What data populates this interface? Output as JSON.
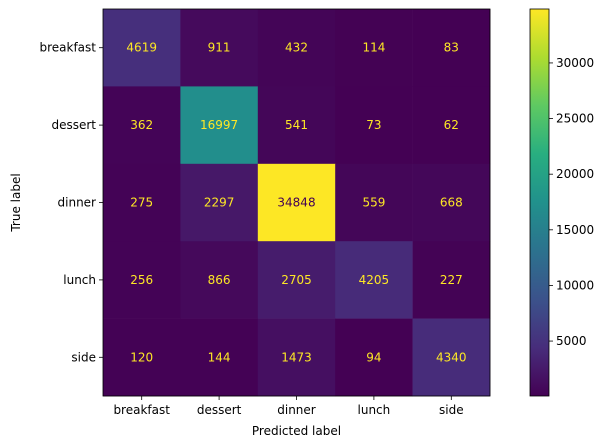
{
  "chart_data": {
    "type": "heatmap",
    "title": "",
    "xlabel": "Predicted label",
    "ylabel": "True label",
    "categories": [
      "breakfast",
      "dessert",
      "dinner",
      "lunch",
      "side"
    ],
    "rows": [
      "breakfast",
      "dessert",
      "dinner",
      "lunch",
      "side"
    ],
    "values": [
      [
        4619,
        911,
        432,
        114,
        83
      ],
      [
        362,
        16997,
        541,
        73,
        62
      ],
      [
        275,
        2297,
        34848,
        559,
        668
      ],
      [
        256,
        866,
        2705,
        4205,
        227
      ],
      [
        120,
        144,
        1473,
        94,
        4340
      ]
    ],
    "colormap": "viridis",
    "colorbar": {
      "min": 62,
      "max": 34848,
      "ticks": [
        5000,
        10000,
        15000,
        20000,
        25000,
        30000
      ]
    },
    "cell_label_colors": {
      "light": "#fde725",
      "dark": "#440154"
    }
  }
}
